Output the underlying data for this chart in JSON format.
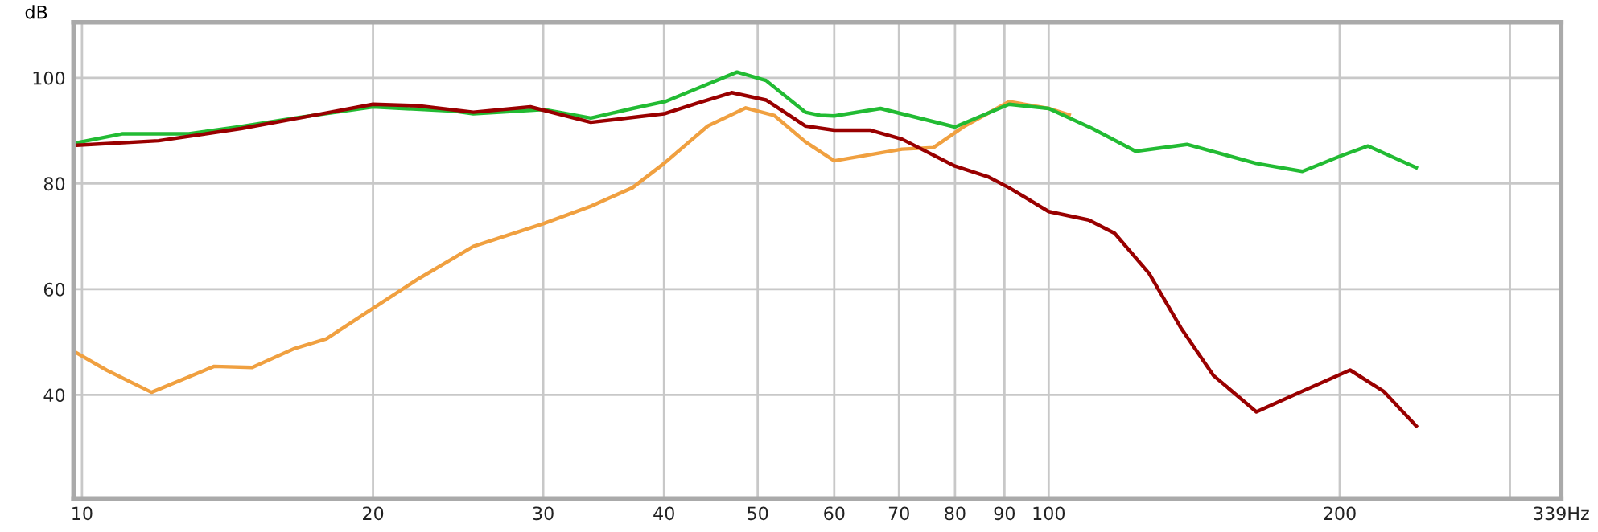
{
  "chart_data": {
    "type": "line",
    "ylabel": "dB",
    "log": "x",
    "grid": true,
    "marker": "none",
    "line_style": "solid",
    "xlim": [
      9.8,
      339
    ],
    "ylim": [
      20.4,
      110.5
    ],
    "xticks": [
      10,
      20,
      30,
      40,
      50,
      60,
      70,
      80,
      90,
      100,
      200,
      {
        "value": 300,
        "label": null
      },
      {
        "value": 339,
        "label": "339Hz"
      }
    ],
    "yticks": [
      40,
      60,
      80,
      100
    ],
    "series": [
      {
        "color": "#f0a040",
        "x": [
          9.8,
          10.6,
          11.8,
          13.7,
          15,
          16.6,
          17.9,
          20,
          22.3,
          25.4,
          30,
          33.6,
          37.1,
          40,
          44.4,
          48.6,
          52,
          56,
          60,
          70.5,
          76,
          81.9,
          91,
          100,
          105
        ],
        "values": [
          48.3,
          44.7,
          40.5,
          45.4,
          45.2,
          48.8,
          50.6,
          56.4,
          62.0,
          68.1,
          72.4,
          75.7,
          79.2,
          83.8,
          90.9,
          94.3,
          92.9,
          87.9,
          84.3,
          86.5,
          86.8,
          90.9,
          95.5,
          94.2,
          93.0
        ]
      },
      {
        "color": "#22bb33",
        "x": [
          9.8,
          11,
          12.9,
          14.6,
          16.6,
          20,
          24.3,
          25.4,
          30,
          33.6,
          37.1,
          40.1,
          43.3,
          47.6,
          51,
          56,
          58,
          60,
          67,
          80,
          91,
          100,
          111,
          123,
          139,
          164,
          183,
          201,
          214,
          240
        ],
        "values": [
          87.6,
          89.4,
          89.4,
          90.8,
          92.4,
          94.5,
          93.7,
          93.2,
          94.0,
          92.4,
          94.2,
          95.5,
          98.0,
          101.1,
          99.5,
          93.5,
          92.9,
          92.8,
          94.2,
          90.7,
          95.0,
          94.2,
          90.4,
          86.1,
          87.4,
          83.8,
          82.3,
          85.3,
          87.1,
          83.0
        ]
      },
      {
        "color": "#990000",
        "x": [
          9.8,
          12,
          14.6,
          17.7,
          20,
          22.3,
          25.4,
          29.1,
          33.6,
          36.7,
          40,
          43.3,
          47,
          51,
          56,
          60,
          65.3,
          70.5,
          80,
          86.5,
          91,
          100,
          110,
          117,
          127,
          137,
          148,
          164,
          183,
          205,
          222,
          240
        ],
        "values": [
          87.2,
          88.1,
          90.4,
          93.2,
          95.0,
          94.7,
          93.5,
          94.5,
          91.6,
          92.4,
          93.2,
          95.2,
          97.2,
          95.8,
          90.9,
          90.1,
          90.1,
          88.4,
          83.3,
          81.3,
          79.2,
          74.7,
          73.1,
          70.6,
          63.0,
          52.7,
          43.7,
          36.8,
          40.7,
          44.7,
          40.7,
          34.1
        ]
      }
    ]
  }
}
